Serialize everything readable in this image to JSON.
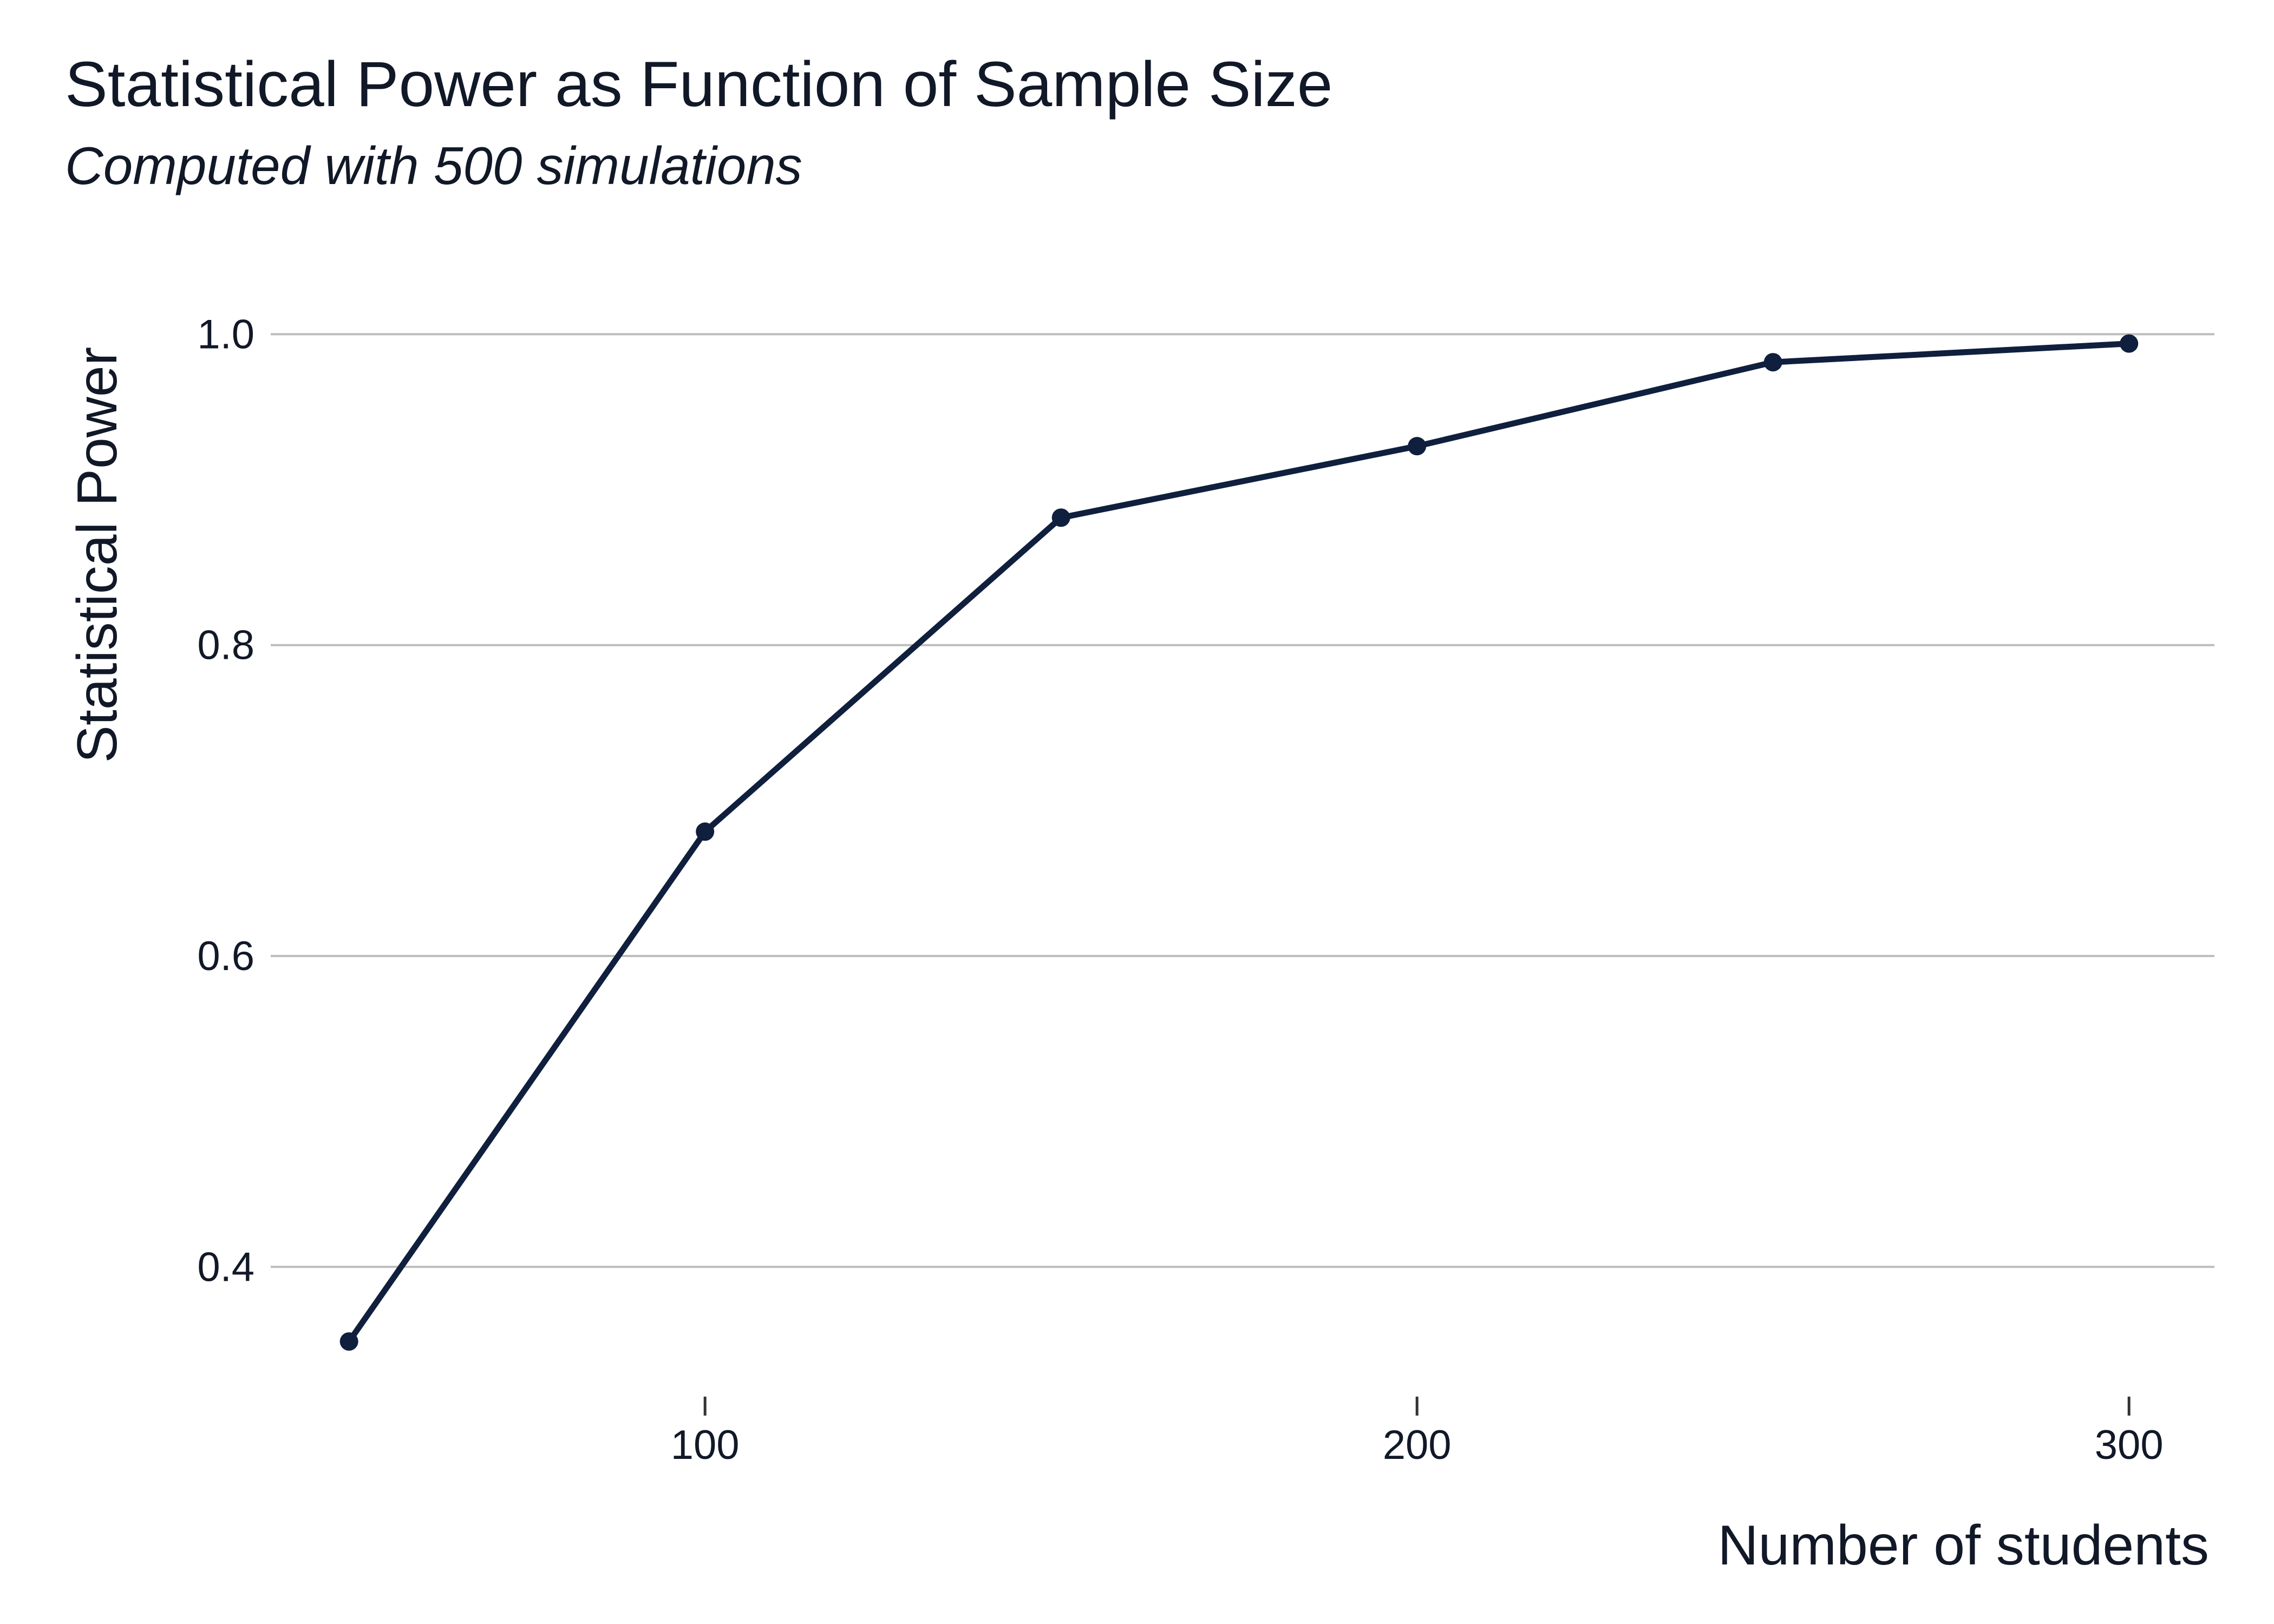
{
  "chart_data": {
    "type": "line",
    "title": "Statistical Power as Function of Sample Size",
    "subtitle": "Computed with 500 simulations",
    "xlabel": "Number of students",
    "ylabel": "Statistical Power",
    "x": [
      50,
      100,
      150,
      200,
      250,
      300
    ],
    "series": [
      {
        "values": [
          0.352,
          0.68,
          0.882,
          0.928,
          0.982,
          0.994
        ]
      }
    ],
    "xlim": [
      39,
      312
    ],
    "ylim": [
      0.32,
      1.02
    ],
    "x_ticks": [
      100,
      200,
      300
    ],
    "x_tick_labels": [
      "100",
      "200",
      "300"
    ],
    "y_ticks": [
      0.4,
      0.6,
      0.8,
      1.0
    ],
    "y_tick_labels": [
      "0.4",
      "0.6",
      "0.8",
      "1.0"
    ],
    "grid": "horizontal",
    "line_color": "#0f1f3d",
    "grid_color": "#bdbdbd"
  }
}
